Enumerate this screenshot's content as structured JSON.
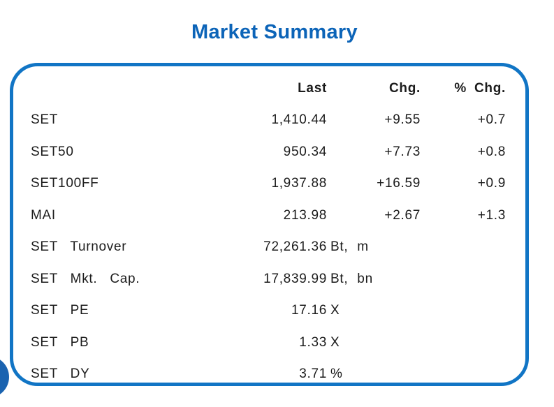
{
  "title": "Market Summary",
  "card": {
    "headers": {
      "last": "Last",
      "chg": "Chg.",
      "pct": "% Chg."
    },
    "rows": [
      {
        "label": "SET",
        "last": "1,410.44",
        "unit": "",
        "chg": "+9.55",
        "pct": "+0.7"
      },
      {
        "label": "SET50",
        "last": "950.34",
        "unit": "",
        "chg": "+7.73",
        "pct": "+0.8"
      },
      {
        "label": "SET100FF",
        "last": "1,937.88",
        "unit": "",
        "chg": "+16.59",
        "pct": "+0.9"
      },
      {
        "label": "MAI",
        "last": "213.98",
        "unit": "",
        "chg": "+2.67",
        "pct": "+1.3"
      },
      {
        "label": "SET Turnover",
        "last": "72,261.36",
        "unit": "Bt, m",
        "chg": "",
        "pct": ""
      },
      {
        "label": "SET Mkt. Cap.",
        "last": "17,839.99",
        "unit": "Bt, bn",
        "chg": "",
        "pct": ""
      },
      {
        "label": "SET PE",
        "last": "17.16",
        "unit": "X",
        "chg": "",
        "pct": ""
      },
      {
        "label": "SET PB",
        "last": "1.33",
        "unit": "X",
        "chg": "",
        "pct": ""
      },
      {
        "label": "SET DY",
        "last": "3.71",
        "unit": "%",
        "chg": "",
        "pct": ""
      }
    ]
  },
  "colors": {
    "accent_border": "#1175c5",
    "title_blue": "#0c64b8",
    "circle_blue": "#1a63b0",
    "text": "#1c1c1c"
  }
}
